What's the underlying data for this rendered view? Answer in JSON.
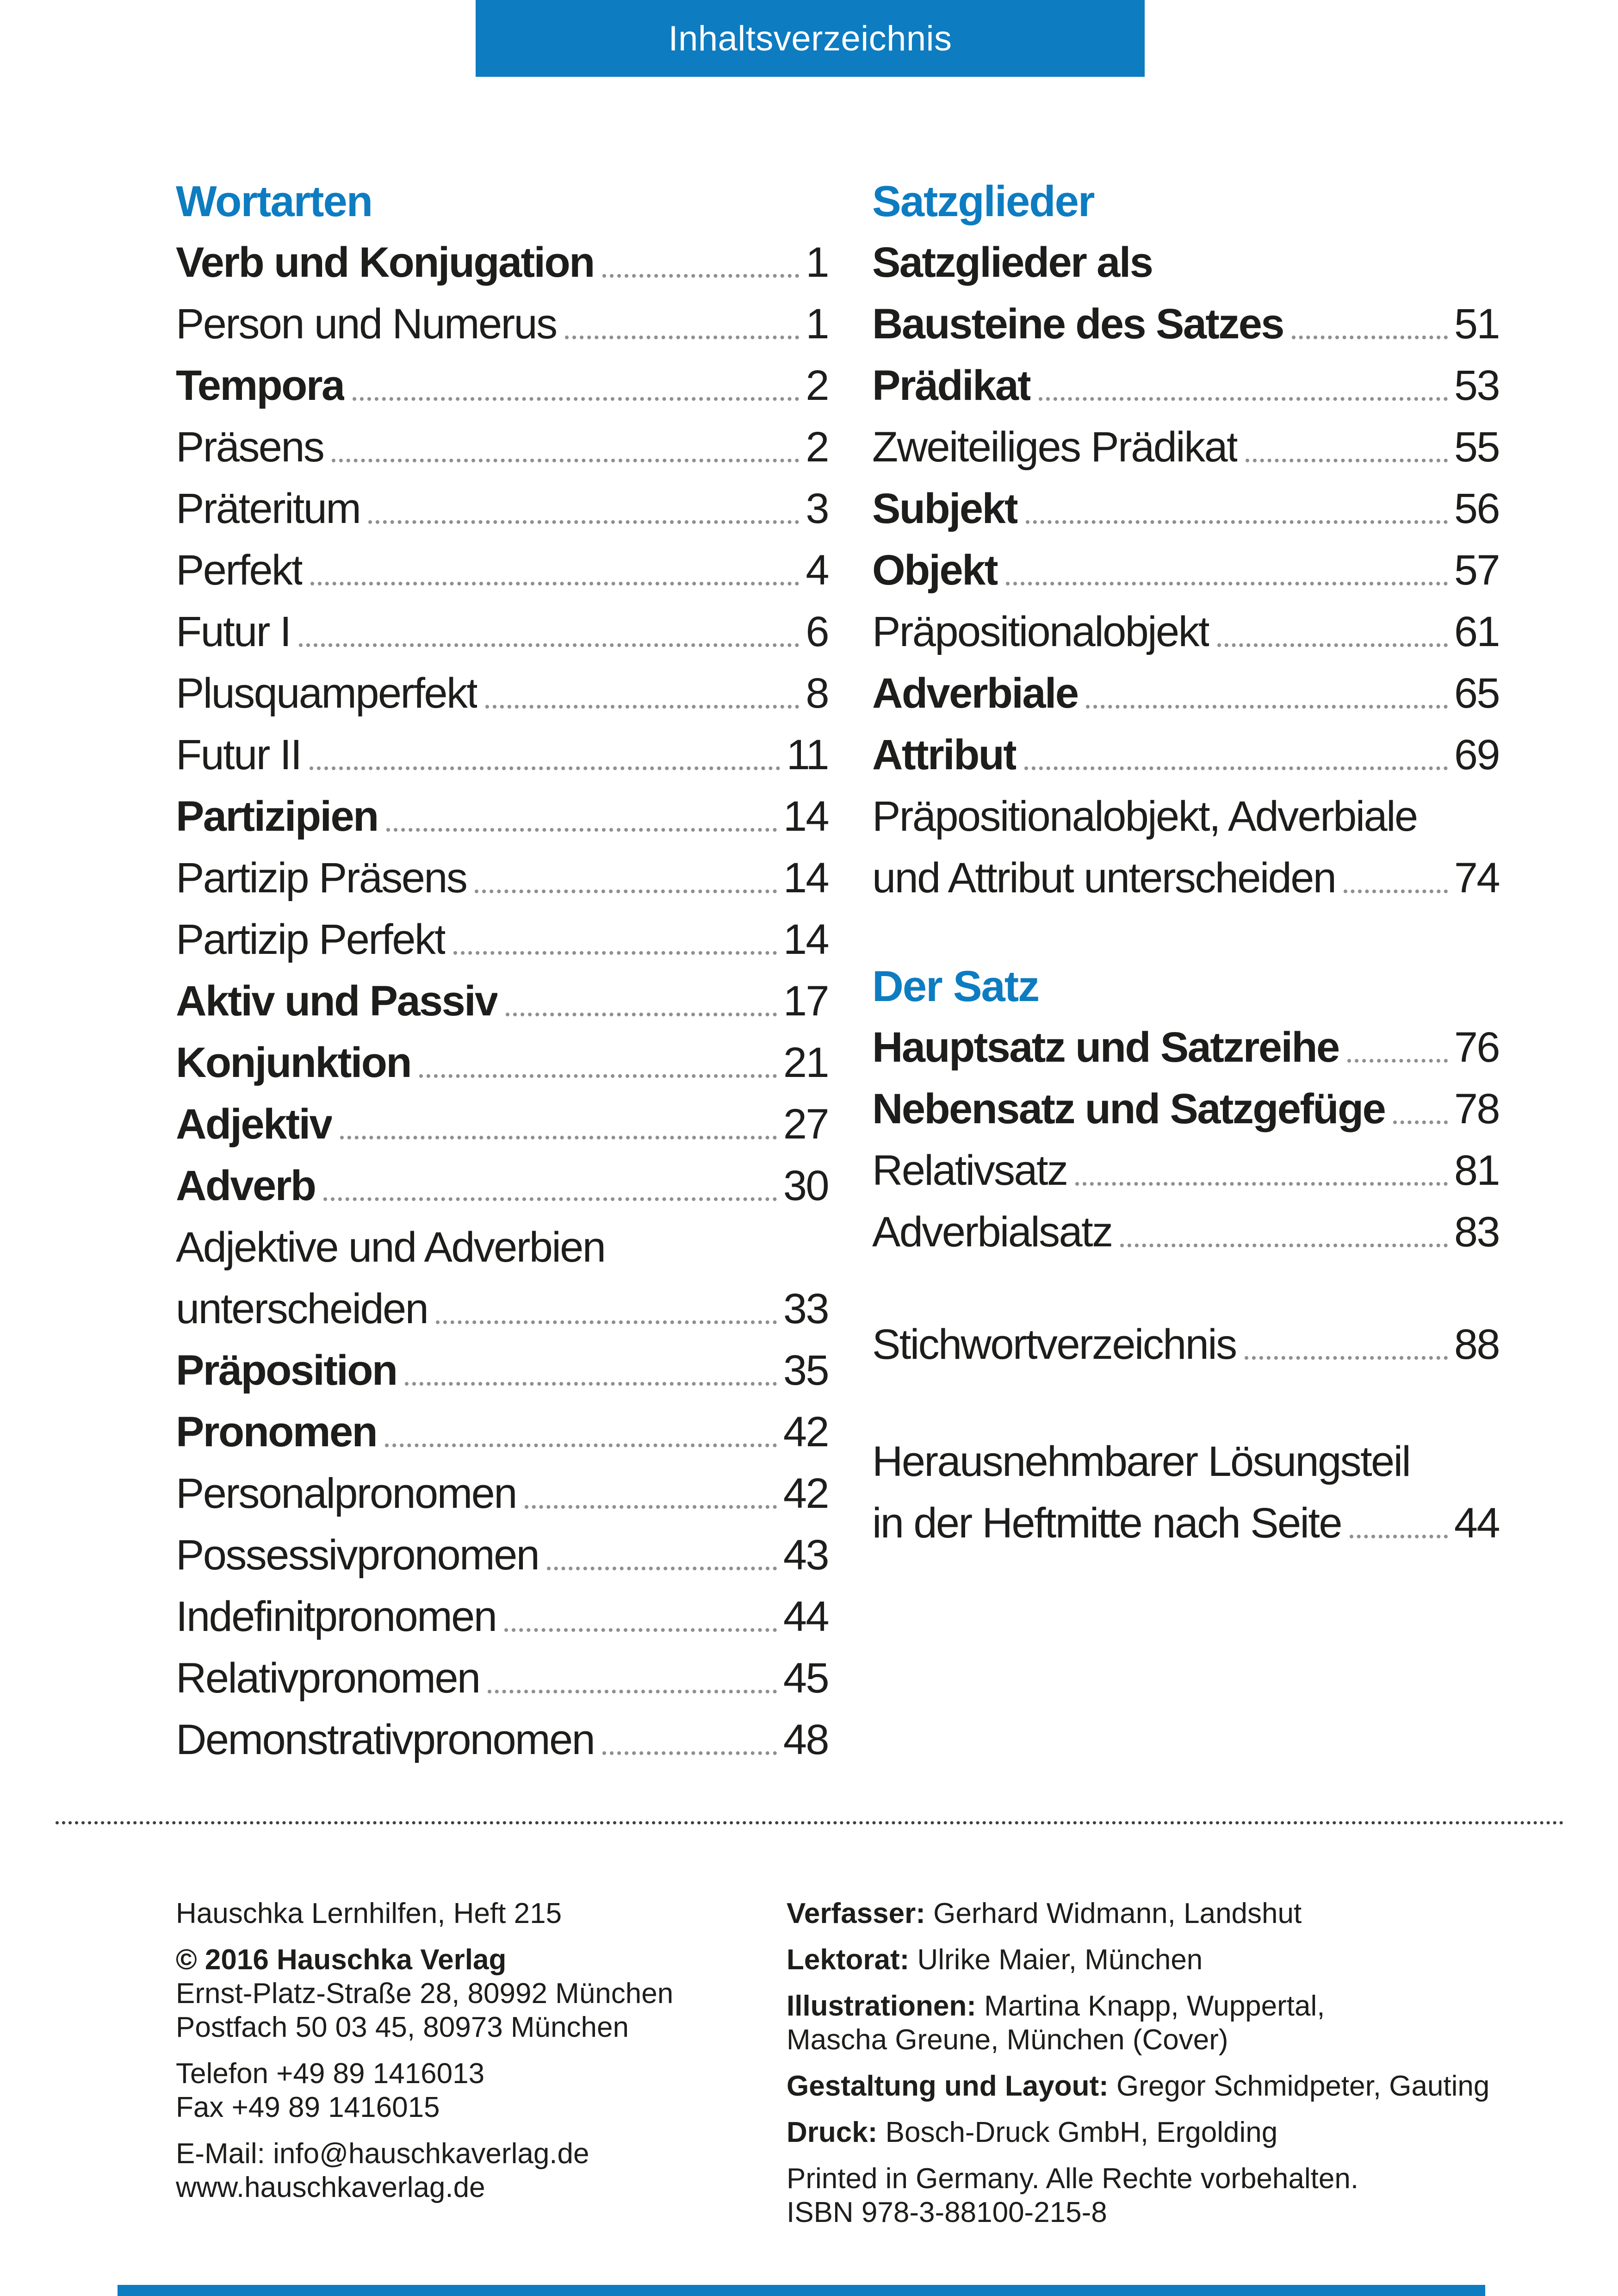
{
  "header": {
    "title": "Inhaltsverzeichnis"
  },
  "colors": {
    "accent": "#0d7cc1",
    "text": "#1d1d1b",
    "dots": "#8f8f8f"
  },
  "toc": {
    "left": [
      {
        "heading": "Wortarten",
        "entries": [
          {
            "lines": [
              "Verb und Konjugation"
            ],
            "page": "1",
            "bold": true
          },
          {
            "lines": [
              "Person und Numerus"
            ],
            "page": "1",
            "bold": false
          },
          {
            "lines": [
              "Tempora"
            ],
            "page": "2",
            "bold": true
          },
          {
            "lines": [
              "Präsens"
            ],
            "page": "2",
            "bold": false
          },
          {
            "lines": [
              "Präteritum"
            ],
            "page": "3",
            "bold": false
          },
          {
            "lines": [
              "Perfekt"
            ],
            "page": "4",
            "bold": false
          },
          {
            "lines": [
              "Futur I"
            ],
            "page": "6",
            "bold": false
          },
          {
            "lines": [
              "Plusquamperfekt"
            ],
            "page": "8",
            "bold": false
          },
          {
            "lines": [
              "Futur II"
            ],
            "page": "11",
            "bold": false
          },
          {
            "lines": [
              "Partizipien"
            ],
            "page": "14",
            "bold": true
          },
          {
            "lines": [
              "Partizip Präsens"
            ],
            "page": "14",
            "bold": false
          },
          {
            "lines": [
              "Partizip Perfekt"
            ],
            "page": "14",
            "bold": false
          },
          {
            "lines": [
              "Aktiv und Passiv"
            ],
            "page": "17",
            "bold": true
          },
          {
            "lines": [
              "Konjunktion"
            ],
            "page": "21",
            "bold": true
          },
          {
            "lines": [
              "Adjektiv"
            ],
            "page": "27",
            "bold": true
          },
          {
            "lines": [
              "Adverb"
            ],
            "page": "30",
            "bold": true
          },
          {
            "lines": [
              "Adjektive und Adverbien",
              "unterscheiden"
            ],
            "page": "33",
            "bold": false
          },
          {
            "lines": [
              "Präposition"
            ],
            "page": "35",
            "bold": true
          },
          {
            "lines": [
              "Pronomen"
            ],
            "page": "42",
            "bold": true
          },
          {
            "lines": [
              "Personalpronomen"
            ],
            "page": "42",
            "bold": false
          },
          {
            "lines": [
              "Possessivpronomen"
            ],
            "page": "43",
            "bold": false
          },
          {
            "lines": [
              "Indefinitpronomen"
            ],
            "page": "44",
            "bold": false
          },
          {
            "lines": [
              "Relativpronomen"
            ],
            "page": "45",
            "bold": false
          },
          {
            "lines": [
              "Demonstrativpronomen"
            ],
            "page": "48",
            "bold": false
          }
        ]
      }
    ],
    "right": [
      {
        "heading": "Satzglieder",
        "entries": [
          {
            "lines": [
              "Satzglieder als",
              "Bausteine des Satzes"
            ],
            "page": "51",
            "bold": true
          },
          {
            "lines": [
              "Prädikat"
            ],
            "page": "53",
            "bold": true
          },
          {
            "lines": [
              "Zweiteiliges Prädikat"
            ],
            "page": "55",
            "bold": false
          },
          {
            "lines": [
              "Subjekt"
            ],
            "page": "56",
            "bold": true
          },
          {
            "lines": [
              "Objekt"
            ],
            "page": "57",
            "bold": true
          },
          {
            "lines": [
              "Präpositionalobjekt"
            ],
            "page": "61",
            "bold": false
          },
          {
            "lines": [
              "Adverbiale"
            ],
            "page": "65",
            "bold": true
          },
          {
            "lines": [
              "Attribut"
            ],
            "page": "69",
            "bold": true
          },
          {
            "lines": [
              "Präpositionalobjekt, Adverbiale",
              "und Attribut unterscheiden"
            ],
            "page": "74",
            "bold": false
          }
        ]
      },
      {
        "heading": "Der Satz",
        "entries": [
          {
            "lines": [
              "Hauptsatz und Satzreihe"
            ],
            "page": "76",
            "bold": true
          },
          {
            "lines": [
              "Nebensatz und Satzgefüge"
            ],
            "page": "78",
            "bold": true
          },
          {
            "lines": [
              "Relativsatz"
            ],
            "page": "81",
            "bold": false
          },
          {
            "lines": [
              "Adverbialsatz"
            ],
            "page": "83",
            "bold": false
          }
        ]
      },
      {
        "heading": null,
        "entries": [
          {
            "lines": [
              "Stichwortverzeichnis"
            ],
            "page": "88",
            "bold": false
          }
        ]
      },
      {
        "heading": null,
        "entries": [
          {
            "lines": [
              "Herausnehmbarer Lösungsteil",
              "in der Heftmitte nach Seite"
            ],
            "page": "44",
            "bold": false
          }
        ]
      }
    ]
  },
  "footer": {
    "left_groups": [
      [
        {
          "text": "Hauschka Lernhilfen, Heft 215",
          "bold": false
        }
      ],
      [
        {
          "text": "© 2016 Hauschka Verlag",
          "bold": true
        },
        {
          "text": "Ernst-Platz-Straße 28, 80992 München",
          "bold": false
        },
        {
          "text": "Postfach 50 03 45, 80973 München",
          "bold": false
        }
      ],
      [
        {
          "text": "Telefon +49 89 1416013",
          "bold": false
        },
        {
          "text": "Fax +49 89 1416015",
          "bold": false
        }
      ],
      [
        {
          "text": "E-Mail: info@hauschkaverlag.de",
          "bold": false
        },
        {
          "text": "www.hauschkaverlag.de",
          "bold": false
        }
      ]
    ],
    "right_groups": [
      [
        {
          "label": "Verfasser:",
          "text": " Gerhard Widmann, Landshut"
        }
      ],
      [
        {
          "label": "Lektorat:",
          "text": " Ulrike Maier, München"
        }
      ],
      [
        {
          "label": "Illustrationen:",
          "text": " Martina Knapp, Wuppertal,"
        },
        {
          "text": "Mascha Greune, München (Cover)"
        }
      ],
      [
        {
          "label": "Gestaltung und Layout:",
          "text": " Gregor Schmidpeter, Gauting"
        }
      ],
      [
        {
          "label": "Druck:",
          "text": " Bosch-Druck GmbH, Ergolding"
        }
      ],
      [
        {
          "text": "Printed in Germany. Alle Rechte vorbehalten."
        },
        {
          "text": "ISBN 978-3-88100-215-8"
        }
      ]
    ]
  }
}
